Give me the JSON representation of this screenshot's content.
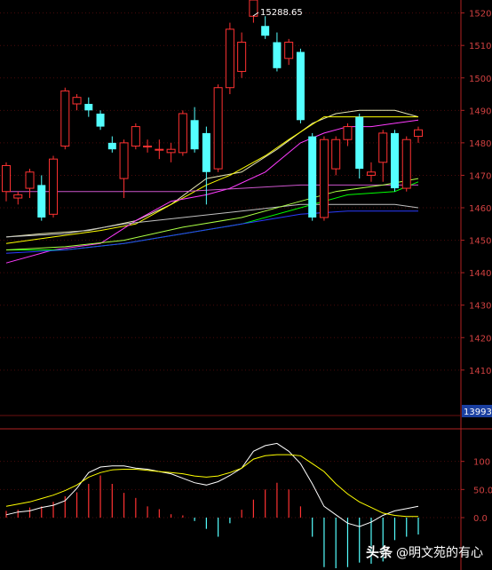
{
  "chart_data": {
    "type": "candlestick",
    "price_axis": {
      "ticks": [
        1410,
        1420,
        1430,
        1440,
        1450,
        1460,
        1470,
        1480,
        1490,
        1500,
        1510,
        1520
      ],
      "tick_labels": [
        "1410",
        "1420",
        "1430",
        "1440",
        "1450",
        "1460",
        "1470",
        "1480",
        "1490",
        "1500",
        "1510",
        "1520"
      ],
      "ylim": [
        1396,
        1524
      ],
      "current_price_label": "13993."
    },
    "peak_annotation": "15288.65",
    "candles": [
      {
        "o": 1465,
        "h": 1474,
        "l": 1462,
        "c": 1473
      },
      {
        "o": 1463,
        "h": 1465,
        "l": 1461,
        "c": 1464
      },
      {
        "o": 1466,
        "h": 1472,
        "l": 1463,
        "c": 1471
      },
      {
        "o": 1467,
        "h": 1470,
        "l": 1456,
        "c": 1457
      },
      {
        "o": 1458,
        "h": 1476,
        "l": 1457,
        "c": 1475
      },
      {
        "o": 1479,
        "h": 1497,
        "l": 1478,
        "c": 1496
      },
      {
        "o": 1492,
        "h": 1495,
        "l": 1490,
        "c": 1494
      },
      {
        "o": 1492,
        "h": 1494,
        "l": 1488,
        "c": 1490
      },
      {
        "o": 1489,
        "h": 1490,
        "l": 1484,
        "c": 1485
      },
      {
        "o": 1480,
        "h": 1482,
        "l": 1477,
        "c": 1478
      },
      {
        "o": 1469,
        "h": 1481,
        "l": 1463,
        "c": 1480
      },
      {
        "o": 1479,
        "h": 1486,
        "l": 1478,
        "c": 1485
      },
      {
        "o": 1479,
        "h": 1481,
        "l": 1477,
        "c": 1479
      },
      {
        "o": 1478,
        "h": 1481,
        "l": 1475,
        "c": 1478
      },
      {
        "o": 1477,
        "h": 1480,
        "l": 1474,
        "c": 1478
      },
      {
        "o": 1477,
        "h": 1490,
        "l": 1476,
        "c": 1489
      },
      {
        "o": 1487,
        "h": 1491,
        "l": 1477,
        "c": 1478
      },
      {
        "o": 1483,
        "h": 1485,
        "l": 1461,
        "c": 1471
      },
      {
        "o": 1472,
        "h": 1498,
        "l": 1471,
        "c": 1497
      },
      {
        "o": 1497,
        "h": 1517,
        "l": 1495,
        "c": 1515
      },
      {
        "o": 1502,
        "h": 1514,
        "l": 1500,
        "c": 1511
      },
      {
        "o": 1519,
        "h": 1528,
        "l": 1517,
        "c": 1524
      },
      {
        "o": 1516,
        "h": 1519,
        "l": 1512,
        "c": 1513
      },
      {
        "o": 1511,
        "h": 1514,
        "l": 1502,
        "c": 1503
      },
      {
        "o": 1506,
        "h": 1512,
        "l": 1504,
        "c": 1511
      },
      {
        "o": 1508,
        "h": 1509,
        "l": 1486,
        "c": 1487
      },
      {
        "o": 1482,
        "h": 1483,
        "l": 1456,
        "c": 1457
      },
      {
        "o": 1457,
        "h": 1482,
        "l": 1456,
        "c": 1481
      },
      {
        "o": 1472,
        "h": 1482,
        "l": 1470,
        "c": 1481
      },
      {
        "o": 1481,
        "h": 1486,
        "l": 1479,
        "c": 1485
      },
      {
        "o": 1488,
        "h": 1489,
        "l": 1469,
        "c": 1472
      },
      {
        "o": 1470,
        "h": 1474,
        "l": 1468,
        "c": 1471
      },
      {
        "o": 1474,
        "h": 1484,
        "l": 1468,
        "c": 1483
      },
      {
        "o": 1483,
        "h": 1484,
        "l": 1465,
        "c": 1466
      },
      {
        "o": 1466,
        "h": 1482,
        "l": 1465,
        "c": 1481
      },
      {
        "o": 1482,
        "h": 1485,
        "l": 1480,
        "c": 1484
      }
    ],
    "moving_averages": [
      {
        "color": "#e6e6b4",
        "points": [
          [
            0,
            1451
          ],
          [
            3,
            1452
          ],
          [
            7,
            1453
          ],
          [
            11,
            1456
          ],
          [
            14,
            1461
          ],
          [
            17,
            1469
          ],
          [
            20,
            1471
          ],
          [
            23,
            1478
          ],
          [
            26,
            1486
          ],
          [
            28,
            1489
          ],
          [
            30,
            1490
          ],
          [
            33,
            1490
          ],
          [
            35,
            1488
          ]
        ]
      },
      {
        "color": "#ffff00",
        "points": [
          [
            0,
            1449
          ],
          [
            4,
            1451
          ],
          [
            8,
            1453
          ],
          [
            11,
            1455
          ],
          [
            14,
            1461
          ],
          [
            17,
            1467
          ],
          [
            19,
            1470
          ],
          [
            22,
            1476
          ],
          [
            24,
            1481
          ],
          [
            27,
            1488
          ],
          [
            29,
            1488
          ],
          [
            31,
            1488
          ],
          [
            34,
            1488
          ],
          [
            35,
            1488
          ]
        ]
      },
      {
        "color": "#ff3bff",
        "points": [
          [
            0,
            1443
          ],
          [
            4,
            1447
          ],
          [
            8,
            1449
          ],
          [
            11,
            1456
          ],
          [
            14,
            1462
          ],
          [
            17,
            1464
          ],
          [
            19,
            1466
          ],
          [
            22,
            1471
          ],
          [
            25,
            1480
          ],
          [
            27,
            1483
          ],
          [
            29,
            1485
          ],
          [
            31,
            1485
          ],
          [
            33,
            1486
          ],
          [
            35,
            1487
          ]
        ]
      },
      {
        "color": "#cc55cc",
        "points": [
          [
            0,
            1465
          ],
          [
            5,
            1465
          ],
          [
            10,
            1465
          ],
          [
            15,
            1465
          ],
          [
            20,
            1466
          ],
          [
            25,
            1467
          ],
          [
            29,
            1467
          ],
          [
            33,
            1467
          ],
          [
            35,
            1467
          ]
        ]
      },
      {
        "color": "#c0c0c0",
        "points": [
          [
            0,
            1451
          ],
          [
            5,
            1452
          ],
          [
            10,
            1455
          ],
          [
            15,
            1457
          ],
          [
            20,
            1459
          ],
          [
            25,
            1461
          ],
          [
            29,
            1461
          ],
          [
            33,
            1461
          ],
          [
            35,
            1460
          ]
        ]
      },
      {
        "color": "#00ff00",
        "points": [
          [
            0,
            1447
          ],
          [
            5,
            1447
          ],
          [
            10,
            1449
          ],
          [
            15,
            1452
          ],
          [
            20,
            1455
          ],
          [
            25,
            1460
          ],
          [
            29,
            1464
          ],
          [
            33,
            1465
          ],
          [
            35,
            1468
          ]
        ]
      },
      {
        "color": "#aaff44",
        "points": [
          [
            0,
            1447
          ],
          [
            5,
            1448
          ],
          [
            10,
            1450
          ],
          [
            15,
            1454
          ],
          [
            20,
            1457
          ],
          [
            24,
            1461
          ],
          [
            28,
            1465
          ],
          [
            32,
            1467
          ],
          [
            35,
            1469
          ]
        ]
      },
      {
        "color": "#2a3cff",
        "points": [
          [
            0,
            1446
          ],
          [
            5,
            1447
          ],
          [
            10,
            1449
          ],
          [
            15,
            1452
          ],
          [
            20,
            1455
          ],
          [
            25,
            1458
          ],
          [
            29,
            1459
          ],
          [
            33,
            1459
          ],
          [
            35,
            1459
          ]
        ]
      }
    ],
    "indicator": {
      "ticks": [
        0.0,
        50.0,
        100
      ],
      "tick_labels": [
        "0.0",
        "50.0",
        "100"
      ],
      "ylim": [
        -90,
        150
      ],
      "histogram": [
        12,
        14,
        18,
        20,
        28,
        38,
        45,
        60,
        75,
        60,
        44,
        35,
        20,
        15,
        6,
        4,
        -6,
        -20,
        -34,
        -10,
        14,
        32,
        50,
        62,
        50,
        20,
        -34,
        -88,
        -90,
        -88,
        -80,
        -82,
        -78,
        -40,
        -34,
        -30
      ],
      "line1": {
        "color": "#ffffff",
        "values": [
          5,
          10,
          12,
          18,
          22,
          30,
          52,
          80,
          90,
          92,
          92,
          88,
          86,
          82,
          78,
          70,
          62,
          58,
          64,
          75,
          88,
          118,
          128,
          132,
          118,
          96,
          60,
          20,
          5,
          -10,
          -16,
          -8,
          4,
          12,
          16,
          20
        ]
      },
      "line2": {
        "color": "#ffff00",
        "values": [
          20,
          24,
          28,
          34,
          40,
          48,
          58,
          72,
          80,
          85,
          86,
          86,
          84,
          82,
          80,
          78,
          74,
          72,
          74,
          80,
          88,
          104,
          110,
          112,
          112,
          110,
          96,
          82,
          60,
          42,
          28,
          18,
          8,
          4,
          2,
          2
        ]
      }
    }
  },
  "watermark": {
    "brand": "头条",
    "author": "@明文苑的有心"
  }
}
